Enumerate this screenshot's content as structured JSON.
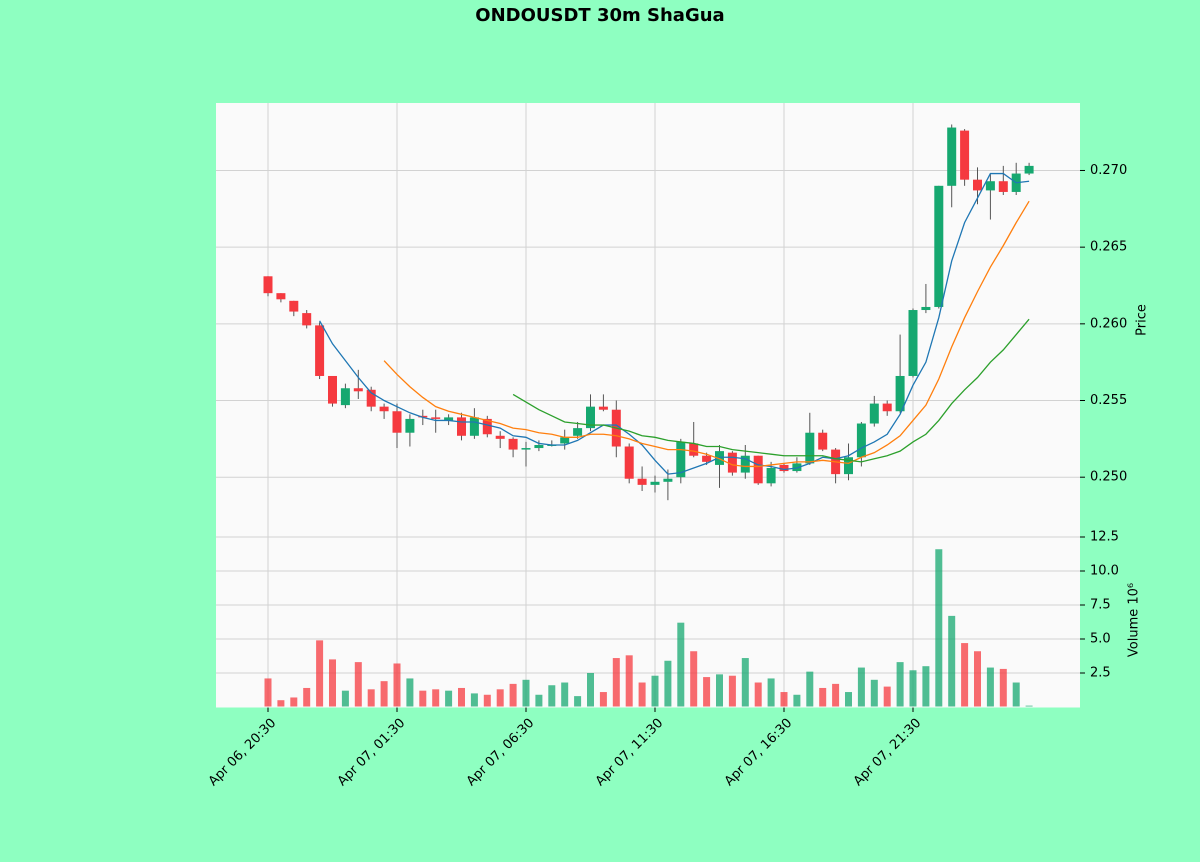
{
  "chart_data": {
    "type": "candlestick",
    "title": "ONDOUSDT 30m ShaGua",
    "y_label": "Price",
    "volume_label": "Volume  10⁶",
    "categories": [
      "Apr 06, 20:30",
      null,
      null,
      null,
      null,
      null,
      null,
      null,
      null,
      null,
      "Apr 07, 01:30",
      null,
      null,
      null,
      null,
      null,
      null,
      null,
      null,
      null,
      "Apr 07, 06:30",
      null,
      null,
      null,
      null,
      null,
      null,
      null,
      null,
      null,
      "Apr 07, 11:30",
      null,
      null,
      null,
      null,
      null,
      null,
      null,
      null,
      null,
      "Apr 07, 16:30",
      null,
      null,
      null,
      null,
      null,
      null,
      null,
      null,
      null,
      "Apr 07, 21:30",
      null,
      null,
      null,
      null,
      null,
      null,
      null,
      null,
      null
    ],
    "open": [
      0.2631,
      0.262,
      0.2615,
      0.2607,
      0.2599,
      0.2566,
      0.2547,
      0.2558,
      0.2557,
      0.2546,
      0.2543,
      0.2529,
      0.254,
      0.2539,
      0.2537,
      0.2539,
      0.2527,
      0.2538,
      0.2527,
      0.2525,
      0.2518,
      0.2519,
      0.2521,
      0.2522,
      0.2527,
      0.2532,
      0.2546,
      0.2544,
      0.252,
      0.2499,
      0.2495,
      0.2497,
      0.25,
      0.2522,
      0.2514,
      0.2508,
      0.2516,
      0.2503,
      0.2514,
      0.2496,
      0.2508,
      0.2504,
      0.2509,
      0.2529,
      0.2518,
      0.2502,
      0.2513,
      0.2535,
      0.2548,
      0.2543,
      0.2566,
      0.2609,
      0.2611,
      0.269,
      0.2726,
      0.2694,
      0.2687,
      0.2693,
      0.2686,
      0.2698
    ],
    "high": [
      0.2631,
      0.262,
      0.2615,
      0.2609,
      0.2601,
      0.2566,
      0.2561,
      0.257,
      0.2559,
      0.2548,
      0.2548,
      0.2541,
      0.2544,
      0.2544,
      0.2541,
      0.2542,
      0.2545,
      0.254,
      0.253,
      0.2526,
      0.2523,
      0.2524,
      0.2524,
      0.2531,
      0.2536,
      0.2554,
      0.2554,
      0.255,
      0.2522,
      0.2507,
      0.2501,
      0.2505,
      0.2525,
      0.2536,
      0.2516,
      0.2521,
      0.2517,
      0.2521,
      0.2514,
      0.251,
      0.2509,
      0.2513,
      0.2542,
      0.2531,
      0.2519,
      0.2522,
      0.2536,
      0.2553,
      0.255,
      0.2593,
      0.261,
      0.2626,
      0.269,
      0.273,
      0.2727,
      0.2702,
      0.2698,
      0.2703,
      0.2705,
      0.2705
    ],
    "low": [
      0.2618,
      0.2614,
      0.2605,
      0.2597,
      0.2564,
      0.2546,
      0.2545,
      0.2551,
      0.2543,
      0.2538,
      0.2519,
      0.252,
      0.2534,
      0.2529,
      0.2534,
      0.2524,
      0.2525,
      0.2526,
      0.2519,
      0.2513,
      0.2507,
      0.2517,
      0.252,
      0.2518,
      0.2525,
      0.253,
      0.2543,
      0.2513,
      0.2496,
      0.2491,
      0.249,
      0.2485,
      0.2496,
      0.2513,
      0.2508,
      0.2493,
      0.2501,
      0.2499,
      0.2495,
      0.2494,
      0.2503,
      0.2503,
      0.2508,
      0.2517,
      0.2496,
      0.2498,
      0.2507,
      0.2533,
      0.254,
      0.2542,
      0.2565,
      0.2607,
      0.261,
      0.2676,
      0.269,
      0.2678,
      0.2668,
      0.2684,
      0.2684,
      0.2697
    ],
    "close": [
      0.262,
      0.2616,
      0.2608,
      0.2599,
      0.2566,
      0.2548,
      0.2558,
      0.2556,
      0.2546,
      0.2543,
      0.2529,
      0.2538,
      0.2539,
      0.2538,
      0.2539,
      0.2527,
      0.2539,
      0.2528,
      0.2525,
      0.2518,
      0.2519,
      0.2521,
      0.2521,
      0.2526,
      0.2532,
      0.2546,
      0.2544,
      0.252,
      0.2499,
      0.2495,
      0.2497,
      0.2499,
      0.2523,
      0.2514,
      0.251,
      0.2517,
      0.2503,
      0.2514,
      0.2496,
      0.2506,
      0.2504,
      0.2509,
      0.2529,
      0.2518,
      0.2502,
      0.2513,
      0.2535,
      0.2548,
      0.2543,
      0.2566,
      0.2609,
      0.2611,
      0.269,
      0.2728,
      0.2694,
      0.2687,
      0.2693,
      0.2686,
      0.2698,
      0.2703
    ],
    "volume": [
      2.1,
      0.5,
      0.7,
      1.4,
      4.9,
      3.5,
      1.2,
      3.3,
      1.3,
      1.9,
      3.2,
      2.1,
      1.2,
      1.3,
      1.2,
      1.4,
      1.0,
      0.9,
      1.3,
      1.7,
      2.0,
      0.9,
      1.6,
      1.8,
      0.8,
      2.5,
      1.1,
      3.6,
      3.8,
      1.8,
      2.3,
      3.4,
      6.2,
      4.1,
      2.2,
      2.4,
      2.3,
      3.6,
      1.8,
      2.1,
      1.1,
      0.9,
      2.6,
      1.4,
      1.7,
      1.1,
      2.9,
      2.0,
      1.5,
      3.3,
      2.7,
      3.0,
      11.6,
      6.7,
      4.7,
      4.1,
      2.9,
      2.8,
      1.8,
      0.1
    ],
    "moving_averages": [
      {
        "color": "#1f77b4",
        "values": [
          null,
          null,
          null,
          null,
          0.2602,
          0.2587,
          0.2576,
          0.2565,
          0.2555,
          0.255,
          0.2546,
          0.2542,
          0.2539,
          0.2537,
          0.2537,
          0.2536,
          0.2536,
          0.2534,
          0.2532,
          0.2527,
          0.2526,
          0.2522,
          0.2521,
          0.2521,
          0.2524,
          0.2529,
          0.2534,
          0.2534,
          0.2528,
          0.2521,
          0.2511,
          0.2502,
          0.2503,
          0.2506,
          0.2509,
          0.2513,
          0.2513,
          0.2512,
          0.2508,
          0.2507,
          0.2505,
          0.2506,
          0.2509,
          0.2513,
          0.2512,
          0.2514,
          0.2519,
          0.2523,
          0.2528,
          0.2541,
          0.256,
          0.2575,
          0.2604,
          0.2641,
          0.2666,
          0.2682,
          0.2698,
          0.2698,
          0.2692,
          0.2693
        ]
      },
      {
        "color": "#ff7f0e",
        "values": [
          null,
          null,
          null,
          null,
          null,
          null,
          null,
          null,
          null,
          0.2576,
          0.2567,
          0.2559,
          0.2552,
          0.2546,
          0.2543,
          0.2541,
          0.2539,
          0.2537,
          0.2535,
          0.2532,
          0.2531,
          0.2529,
          0.2528,
          0.2526,
          0.2526,
          0.2528,
          0.2528,
          0.2527,
          0.2525,
          0.2522,
          0.252,
          0.2518,
          0.2518,
          0.2517,
          0.2515,
          0.2512,
          0.2508,
          0.2507,
          0.2507,
          0.2508,
          0.2509,
          0.251,
          0.251,
          0.2511,
          0.251,
          0.2509,
          0.2513,
          0.2516,
          0.2521,
          0.2527,
          0.2537,
          0.2547,
          0.2564,
          0.2585,
          0.2604,
          0.2621,
          0.2637,
          0.2651,
          0.2666,
          0.268
        ]
      },
      {
        "color": "#2ca02c",
        "values": [
          null,
          null,
          null,
          null,
          null,
          null,
          null,
          null,
          null,
          null,
          null,
          null,
          null,
          null,
          null,
          null,
          null,
          null,
          null,
          0.2554,
          0.2549,
          0.2544,
          0.254,
          0.2536,
          0.2535,
          0.2534,
          0.2534,
          0.2532,
          0.253,
          0.2527,
          0.2526,
          0.2524,
          0.2523,
          0.2522,
          0.252,
          0.252,
          0.2518,
          0.2517,
          0.2516,
          0.2515,
          0.2514,
          0.2514,
          0.2514,
          0.2514,
          0.2512,
          0.2511,
          0.251,
          0.2512,
          0.2514,
          0.2517,
          0.2523,
          0.2528,
          0.2537,
          0.2548,
          0.2557,
          0.2565,
          0.2575,
          0.2583,
          0.2593,
          0.2603
        ]
      }
    ],
    "up_color": "#16a870",
    "down_color": "#f5393f",
    "ylim": [
      0.2461,
      0.2744
    ],
    "yticks": [
      {
        "value": 0.25,
        "label": "0.250"
      },
      0.255,
      {
        "value": 0.26,
        "label": "0.260"
      },
      0.265,
      {
        "value": 0.27,
        "label": "0.270"
      }
    ],
    "volume_lim": [
      0,
      12.5
    ],
    "volume_ticks": [
      2.5,
      {
        "value": 5,
        "label": "5.0"
      },
      7.5,
      {
        "value": 10,
        "label": "10.0"
      },
      12.5
    ],
    "grid": true
  }
}
